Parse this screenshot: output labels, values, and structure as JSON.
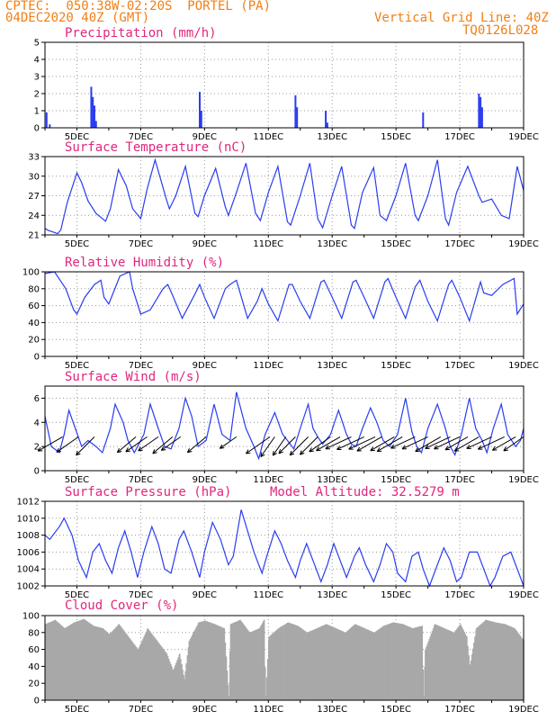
{
  "header": {
    "line1": "CPTEC:  050:38W-02:20S  PORTEL (PA)",
    "line2": "04DEC2020 40Z (GMT)",
    "right1": "Vertical Grid Line: 40Z",
    "right2": "TQ0126L028"
  },
  "colors": {
    "series": "#2a3cf0",
    "title": "#e0267e",
    "header": "#f07f16",
    "cloud": "#a8a8a8",
    "grid": "#999999"
  },
  "x_axis": {
    "start_day": 4.0,
    "end_day": 19.0,
    "ticks": [
      5,
      7,
      9,
      11,
      13,
      15,
      17,
      19
    ],
    "tick_labels": [
      "5DEC",
      "7DEC",
      "9DEC",
      "11DEC",
      "13DEC",
      "15DEC",
      "17DEC",
      "19DEC"
    ]
  },
  "chart_data": [
    {
      "id": "precip",
      "type": "bar",
      "title": "Precipitation (mm/h)",
      "ylim": [
        0,
        5
      ],
      "yticks": [
        0,
        1,
        2,
        3,
        4,
        5
      ],
      "x": [
        4.05,
        4.15,
        5.45,
        5.5,
        5.55,
        5.6,
        8.85,
        8.9,
        11.85,
        11.9,
        12.8,
        12.85,
        15.85,
        17.6,
        17.65,
        17.7
      ],
      "values": [
        0.9,
        0.2,
        2.4,
        1.8,
        1.3,
        0.4,
        2.1,
        1.0,
        1.9,
        1.2,
        1.0,
        0.3,
        0.9,
        2.0,
        1.8,
        1.2
      ]
    },
    {
      "id": "temp",
      "type": "line",
      "title": "Surface Temperature (nC)",
      "ylim": [
        21,
        33
      ],
      "yticks": [
        21,
        24,
        27,
        30,
        33
      ],
      "x": [
        4.0,
        4.1,
        4.4,
        4.5,
        4.7,
        5.0,
        5.15,
        5.35,
        5.6,
        5.9,
        6.05,
        6.3,
        6.55,
        6.75,
        7.0,
        7.2,
        7.45,
        7.8,
        7.9,
        8.1,
        8.4,
        8.7,
        8.8,
        9.0,
        9.35,
        9.65,
        9.75,
        10.0,
        10.3,
        10.6,
        10.75,
        11.0,
        11.3,
        11.6,
        11.7,
        12.0,
        12.3,
        12.55,
        12.7,
        13.0,
        13.3,
        13.6,
        13.7,
        13.95,
        14.3,
        14.5,
        14.7,
        15.0,
        15.3,
        15.6,
        15.7,
        16.0,
        16.3,
        16.55,
        16.65,
        16.9,
        17.25,
        17.6,
        17.7,
        18.0,
        18.3,
        18.55,
        18.8,
        19.0
      ],
      "values": [
        22,
        21.7,
        21.2,
        21.8,
        26,
        30.5,
        29,
        26.2,
        24.3,
        23.1,
        25,
        31,
        28.5,
        25,
        23.5,
        28,
        32.5,
        26.5,
        25,
        27,
        31.5,
        24.3,
        23.8,
        27,
        31.2,
        25.3,
        24,
        27.5,
        32,
        24.3,
        23.2,
        27.5,
        31.5,
        23,
        22.5,
        27,
        32,
        23.5,
        22.1,
        27,
        31.5,
        22.5,
        22,
        27.5,
        31.3,
        24,
        23.2,
        27,
        32,
        24,
        23.2,
        27,
        32.5,
        23.5,
        22.5,
        27.5,
        31.5,
        27,
        26,
        26.5,
        24,
        23.5,
        31.5,
        27.8
      ]
    },
    {
      "id": "rh",
      "type": "line",
      "title": "Relative Humidity (%)",
      "ylim": [
        0,
        100
      ],
      "yticks": [
        0,
        20,
        40,
        60,
        80,
        100
      ],
      "x": [
        4.0,
        4.3,
        4.65,
        4.9,
        5.0,
        5.25,
        5.55,
        5.75,
        5.85,
        6.0,
        6.35,
        6.65,
        6.75,
        7.0,
        7.3,
        7.7,
        7.85,
        8.0,
        8.3,
        8.65,
        8.85,
        9.0,
        9.3,
        9.65,
        9.8,
        10.0,
        10.35,
        10.65,
        10.8,
        11.0,
        11.3,
        11.65,
        11.75,
        12.0,
        12.3,
        12.65,
        12.75,
        13.0,
        13.3,
        13.65,
        13.75,
        14.0,
        14.3,
        14.65,
        14.75,
        15.0,
        15.3,
        15.6,
        15.75,
        16.0,
        16.3,
        16.65,
        16.75,
        17.0,
        17.3,
        17.65,
        17.75,
        18.0,
        18.35,
        18.7,
        18.8,
        19.0
      ],
      "values": [
        98,
        100,
        80,
        55,
        50,
        70,
        85,
        90,
        70,
        62,
        95,
        100,
        80,
        50,
        55,
        80,
        85,
        72,
        45,
        70,
        85,
        70,
        45,
        80,
        85,
        90,
        45,
        65,
        80,
        62,
        42,
        85,
        85,
        65,
        45,
        88,
        90,
        70,
        45,
        88,
        90,
        70,
        45,
        88,
        92,
        70,
        45,
        82,
        90,
        65,
        42,
        85,
        90,
        70,
        42,
        88,
        75,
        72,
        85,
        92,
        50,
        62
      ]
    },
    {
      "id": "wind",
      "type": "line",
      "title": "Surface Wind (m/s)",
      "ylim": [
        0,
        7
      ],
      "yticks": [
        0,
        2,
        4,
        6
      ],
      "x": [
        4.0,
        4.2,
        4.45,
        4.6,
        4.75,
        4.95,
        5.15,
        5.35,
        5.6,
        5.8,
        6.05,
        6.2,
        6.45,
        6.6,
        6.8,
        7.1,
        7.3,
        7.55,
        7.75,
        7.95,
        8.2,
        8.4,
        8.6,
        8.8,
        9.05,
        9.3,
        9.55,
        9.8,
        10.0,
        10.3,
        10.55,
        10.7,
        10.9,
        11.2,
        11.45,
        11.6,
        11.8,
        12.0,
        12.25,
        12.4,
        12.55,
        12.7,
        12.95,
        13.2,
        13.45,
        13.6,
        13.75,
        13.95,
        14.2,
        14.4,
        14.6,
        14.8,
        15.05,
        15.3,
        15.5,
        15.65,
        15.8,
        16.0,
        16.3,
        16.55,
        16.7,
        16.85,
        17.05,
        17.3,
        17.5,
        17.7,
        17.85,
        18.05,
        18.3,
        18.5,
        18.75,
        18.9,
        19.0
      ],
      "values": [
        4.5,
        2.0,
        1.5,
        3.0,
        5.0,
        3.5,
        2.0,
        2.5,
        2.0,
        1.5,
        3.5,
        5.5,
        4.0,
        2.5,
        1.5,
        3.0,
        5.5,
        3.5,
        2.0,
        1.8,
        3.5,
        6.0,
        4.5,
        2.0,
        2.5,
        5.5,
        3.0,
        2.5,
        6.5,
        3.5,
        2.0,
        1.0,
        3.0,
        4.8,
        3.0,
        2.5,
        1.8,
        3.5,
        5.5,
        3.5,
        2.8,
        2.2,
        3.0,
        5.0,
        3.0,
        2.2,
        2.0,
        3.5,
        5.2,
        4.0,
        2.5,
        2.0,
        3.0,
        6.0,
        3.2,
        2.0,
        1.5,
        3.5,
        5.5,
        3.5,
        2.0,
        1.3,
        3.0,
        6.0,
        3.5,
        2.5,
        1.5,
        3.5,
        5.5,
        3.0,
        2.0,
        2.5,
        3.5
      ],
      "arrow_x": [
        4.55,
        5.05,
        5.55,
        6.85,
        7.2,
        7.55,
        8.0,
        8.25,
        9.05,
        10.0,
        11.05,
        11.2,
        11.55,
        11.85,
        12.25,
        12.55,
        12.95,
        13.25,
        13.6,
        14.0,
        14.35,
        14.55,
        14.95,
        15.2,
        15.6,
        16.0,
        16.4,
        16.7,
        17.0,
        17.25,
        17.6,
        18.0,
        18.4,
        18.75,
        19.0
      ],
      "arrow_mag": [
        3.5,
        3.3,
        3.2,
        3.0,
        3.2,
        3.0,
        3.2,
        2.9,
        3.0,
        2.5,
        3.6,
        3.0,
        2.8,
        2.9,
        3.2,
        3.1,
        3.2,
        3.4,
        3.5,
        3.7,
        3.6,
        3.5,
        3.4,
        3.6,
        3.3,
        3.5,
        3.6,
        3.4,
        3.5,
        3.2,
        3.5,
        3.4,
        3.6,
        3.3,
        3.0
      ],
      "arrow_dir_deg": [
        210,
        215,
        225,
        220,
        215,
        215,
        220,
        215,
        220,
        215,
        215,
        235,
        235,
        225,
        225,
        225,
        215,
        210,
        205,
        205,
        205,
        210,
        210,
        210,
        205,
        205,
        210,
        205,
        205,
        210,
        210,
        205,
        205,
        210,
        215
      ]
    },
    {
      "id": "press",
      "type": "line",
      "title": "Surface Pressure (hPa)",
      "subtitle": "Model Altitude: 32.5279 m",
      "ylim": [
        1002,
        1012
      ],
      "yticks": [
        1002,
        1004,
        1006,
        1008,
        1010,
        1012
      ],
      "x": [
        4.0,
        4.15,
        4.45,
        4.6,
        4.85,
        5.05,
        5.3,
        5.5,
        5.7,
        5.9,
        6.1,
        6.3,
        6.5,
        6.7,
        6.9,
        7.1,
        7.35,
        7.55,
        7.75,
        7.95,
        8.2,
        8.35,
        8.6,
        8.85,
        9.0,
        9.25,
        9.5,
        9.75,
        9.9,
        10.15,
        10.35,
        10.55,
        10.8,
        10.95,
        11.2,
        11.4,
        11.6,
        11.85,
        12.0,
        12.2,
        12.4,
        12.65,
        12.85,
        13.05,
        13.25,
        13.45,
        13.7,
        13.85,
        14.05,
        14.3,
        14.5,
        14.7,
        14.9,
        15.05,
        15.3,
        15.5,
        15.7,
        15.85,
        16.05,
        16.3,
        16.5,
        16.7,
        16.9,
        17.05,
        17.3,
        17.55,
        17.75,
        17.95,
        18.1,
        18.35,
        18.6,
        18.85,
        19.0
      ],
      "values": [
        1008.0,
        1007.5,
        1009.0,
        1010.0,
        1008.0,
        1005.0,
        1003.0,
        1006.0,
        1007.0,
        1005.0,
        1003.5,
        1006.5,
        1008.5,
        1006.0,
        1003.0,
        1006.0,
        1009.0,
        1007.0,
        1004.0,
        1003.5,
        1007.5,
        1008.5,
        1006.0,
        1003.0,
        1006.0,
        1009.5,
        1007.5,
        1004.5,
        1005.5,
        1011.0,
        1008.5,
        1006.0,
        1003.5,
        1005.5,
        1008.5,
        1007.0,
        1005.0,
        1003.0,
        1005.0,
        1007.0,
        1005.0,
        1002.5,
        1004.5,
        1007.0,
        1005.0,
        1003.0,
        1005.5,
        1006.5,
        1004.5,
        1002.5,
        1004.5,
        1007.0,
        1006.0,
        1003.5,
        1002.5,
        1005.5,
        1006.0,
        1004.0,
        1002.0,
        1004.5,
        1006.5,
        1005.0,
        1002.5,
        1003.0,
        1006.0,
        1006.0,
        1004.0,
        1002.0,
        1003.0,
        1005.5,
        1006.0,
        1003.5,
        1002.0
      ]
    },
    {
      "id": "cloud",
      "type": "area",
      "title": "Cloud Cover (%)",
      "ylim": [
        0,
        100
      ],
      "yticks": [
        0,
        20,
        40,
        60,
        80,
        100
      ],
      "x": [
        4.0,
        4.3,
        4.6,
        4.9,
        5.2,
        5.5,
        5.8,
        6.0,
        6.3,
        6.6,
        6.9,
        7.2,
        7.5,
        7.8,
        8.0,
        8.2,
        8.35,
        8.5,
        8.8,
        9.0,
        9.3,
        9.6,
        9.75,
        9.8,
        10.1,
        10.4,
        10.7,
        10.85,
        10.9,
        11.0,
        11.3,
        11.6,
        11.9,
        12.2,
        12.5,
        12.8,
        13.1,
        13.4,
        13.7,
        14.0,
        14.3,
        14.6,
        14.9,
        15.2,
        15.5,
        15.8,
        15.85,
        15.9,
        16.2,
        16.5,
        16.8,
        17.0,
        17.2,
        17.3,
        17.5,
        17.8,
        18.1,
        18.4,
        18.7,
        19.0
      ],
      "values": [
        90,
        95,
        85,
        92,
        96,
        88,
        85,
        78,
        90,
        75,
        60,
        85,
        70,
        55,
        35,
        55,
        25,
        70,
        92,
        94,
        90,
        85,
        5,
        90,
        95,
        80,
        85,
        95,
        5,
        75,
        85,
        92,
        88,
        80,
        85,
        90,
        85,
        80,
        90,
        85,
        80,
        88,
        92,
        90,
        85,
        88,
        5,
        60,
        90,
        85,
        80,
        90,
        75,
        40,
        85,
        95,
        92,
        90,
        85,
        70
      ]
    }
  ]
}
